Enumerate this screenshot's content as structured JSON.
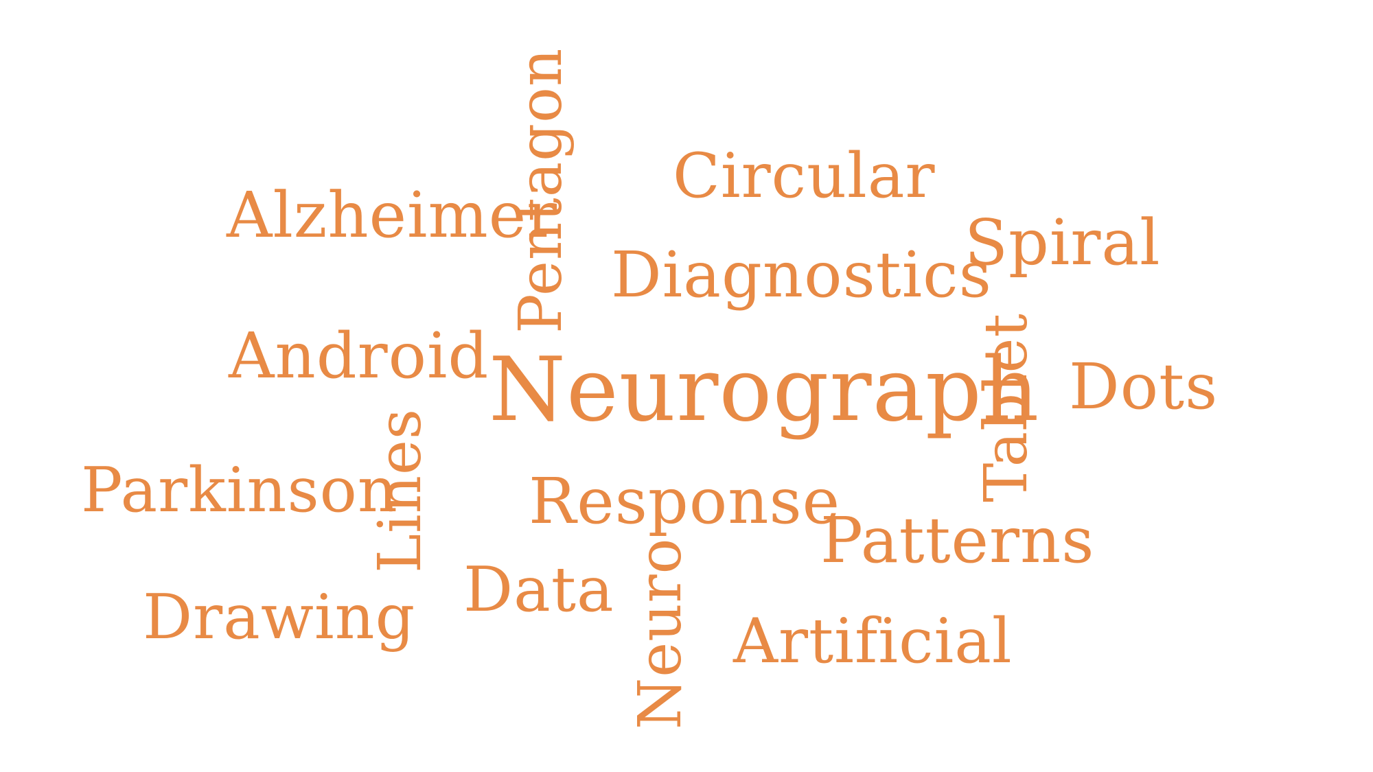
{
  "word_cloud": {
    "color": "#E88A45",
    "words": [
      {
        "id": "neurograph",
        "text": "Neurograph",
        "orientation": "horizontal"
      },
      {
        "id": "alzheimer",
        "text": "Alzheimer",
        "orientation": "horizontal"
      },
      {
        "id": "pentagon",
        "text": "Pentagon",
        "orientation": "vertical"
      },
      {
        "id": "circular",
        "text": "Circular",
        "orientation": "horizontal"
      },
      {
        "id": "spiral",
        "text": "Spiral",
        "orientation": "horizontal"
      },
      {
        "id": "diagnostics",
        "text": "Diagnostics",
        "orientation": "horizontal"
      },
      {
        "id": "android",
        "text": "Android",
        "orientation": "horizontal"
      },
      {
        "id": "tablet",
        "text": "Tablet",
        "orientation": "vertical"
      },
      {
        "id": "dots",
        "text": "Dots",
        "orientation": "horizontal"
      },
      {
        "id": "parkinson",
        "text": "Parkinson",
        "orientation": "horizontal"
      },
      {
        "id": "lines",
        "text": "Lines",
        "orientation": "vertical"
      },
      {
        "id": "response",
        "text": "Response",
        "orientation": "horizontal"
      },
      {
        "id": "patterns",
        "text": "Patterns",
        "orientation": "horizontal"
      },
      {
        "id": "drawing",
        "text": "Drawing",
        "orientation": "horizontal"
      },
      {
        "id": "data",
        "text": "Data",
        "orientation": "horizontal"
      },
      {
        "id": "neuro",
        "text": "Neuro",
        "orientation": "vertical"
      },
      {
        "id": "artificial",
        "text": "Artificial",
        "orientation": "horizontal"
      }
    ]
  }
}
